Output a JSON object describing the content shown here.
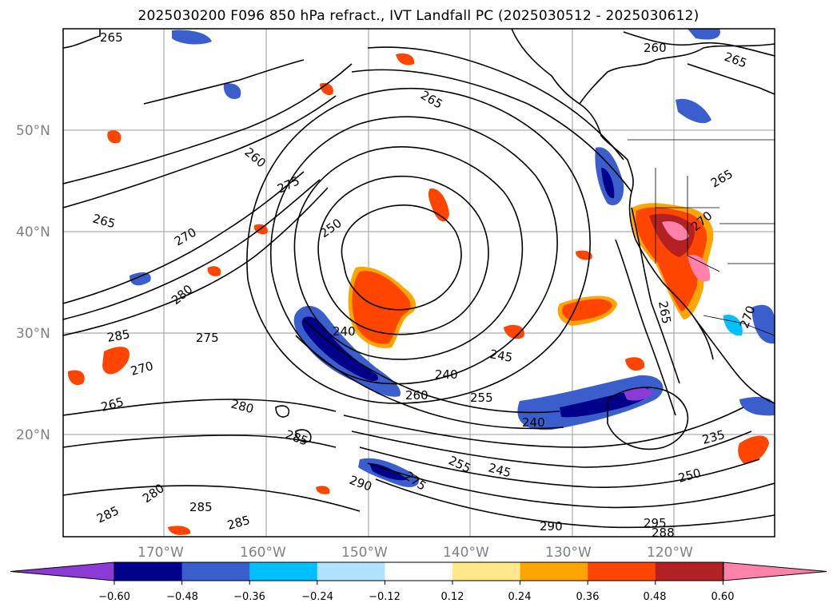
{
  "title": "2025030200 F096 850 hPa refract., IVT Landfall PC (2025030512 - 2025030612)",
  "lat_labels": [
    "50°N",
    "40°N",
    "30°N",
    "20°N"
  ],
  "lon_labels": [
    "170°W",
    "160°W",
    "150°W",
    "140°W",
    "130°W",
    "120°W"
  ],
  "contour_labels": [
    "265",
    "260",
    "265",
    "265",
    "260",
    "275",
    "270",
    "265",
    "250",
    "280",
    "285",
    "275",
    "240",
    "245",
    "270",
    "240",
    "260",
    "255",
    "265",
    "280",
    "240",
    "285",
    "275",
    "255",
    "245",
    "290",
    "280",
    "285",
    "285",
    "285",
    "290",
    "265",
    "235",
    "250",
    "270",
    "270",
    "265",
    "295",
    "288"
  ],
  "colorbar": {
    "ticks": [
      "−0.60",
      "−0.48",
      "−0.36",
      "−0.24",
      "−0.12",
      "0.12",
      "0.24",
      "0.36",
      "0.48",
      "0.60"
    ],
    "colors": [
      "#8c3ad6",
      "#00008b",
      "#3a5fcd",
      "#00bfff",
      "#b0e2ff",
      "#ffffff",
      "#ffe98a",
      "#ffa500",
      "#ff4500",
      "#b22222",
      "#ff82ab",
      "#ff82ab"
    ]
  },
  "colors": {
    "neg_strong": "#00008b",
    "neg_mid": "#3a5fcd",
    "neg_light": "#00bfff",
    "pos_mid": "#ff4500",
    "pos_light": "#ffa500",
    "pos_strong": "#b22222",
    "pos_max": "#ff82ab"
  }
}
